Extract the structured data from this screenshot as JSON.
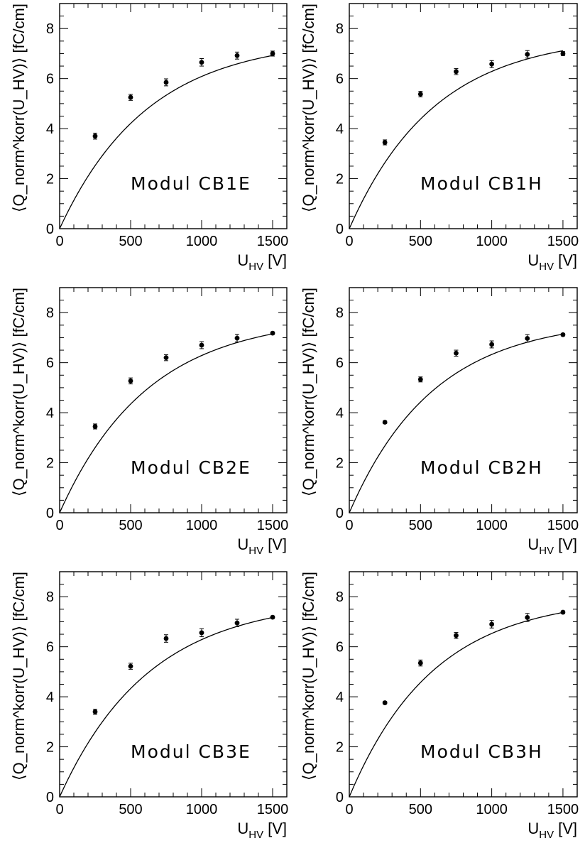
{
  "chart_data": [
    {
      "type": "scatter",
      "label": "Modul CB1E",
      "xlabel_main": "U",
      "xlabel_sub": "HV",
      "xlabel_unit": "[V]",
      "ylabel": "⟨Q_norm^korr(U_HV)⟩ [fC/cm]",
      "xlim": [
        0,
        1600
      ],
      "ylim": [
        0,
        9
      ],
      "x_ticks": [
        "0",
        "500",
        "1000",
        "1500"
      ],
      "y_ticks": [
        "0",
        "2",
        "4",
        "6",
        "8"
      ],
      "x": [
        250,
        500,
        750,
        1000,
        1250,
        1500
      ],
      "y": [
        3.7,
        5.25,
        5.85,
        6.65,
        6.92,
        7.0
      ],
      "yerr": [
        0.12,
        0.12,
        0.14,
        0.15,
        0.14,
        0.1
      ],
      "fit": {
        "A": 7.6,
        "U0": 620
      }
    },
    {
      "type": "scatter",
      "label": "Modul CB1H",
      "xlabel_main": "U",
      "xlabel_sub": "HV",
      "xlabel_unit": "[V]",
      "ylabel": "⟨Q_norm^korr(U_HV)⟩ [fC/cm]",
      "xlim": [
        0,
        1600
      ],
      "ylim": [
        0,
        9
      ],
      "x_ticks": [
        "0",
        "500",
        "1000",
        "1500"
      ],
      "y_ticks": [
        "0",
        "2",
        "4",
        "6",
        "8"
      ],
      "x": [
        250,
        500,
        750,
        1000,
        1250,
        1500
      ],
      "y": [
        3.45,
        5.38,
        6.28,
        6.58,
        6.97,
        7.0
      ],
      "yerr": [
        0.1,
        0.11,
        0.12,
        0.14,
        0.15,
        0.08
      ],
      "fit": {
        "A": 7.75,
        "U0": 600
      }
    },
    {
      "type": "scatter",
      "label": "Modul CB2E",
      "xlabel_main": "U",
      "xlabel_sub": "HV",
      "xlabel_unit": "[V]",
      "ylabel": "⟨Q_norm^korr(U_HV)⟩ [fC/cm]",
      "xlim": [
        0,
        1600
      ],
      "ylim": [
        0,
        9
      ],
      "x_ticks": [
        "0",
        "500",
        "1000",
        "1500"
      ],
      "y_ticks": [
        "0",
        "2",
        "4",
        "6",
        "8"
      ],
      "x": [
        250,
        500,
        750,
        1000,
        1250,
        1500
      ],
      "y": [
        3.45,
        5.27,
        6.2,
        6.7,
        6.98,
        7.18
      ],
      "yerr": [
        0.1,
        0.12,
        0.12,
        0.14,
        0.15,
        0.05
      ],
      "fit": {
        "A": 7.85,
        "U0": 620
      }
    },
    {
      "type": "scatter",
      "label": "Modul CB2H",
      "xlabel_main": "U",
      "xlabel_sub": "HV",
      "xlabel_unit": "[V]",
      "ylabel": "⟨Q_norm^korr(U_HV)⟩ [fC/cm]",
      "xlim": [
        0,
        1600
      ],
      "ylim": [
        0,
        9
      ],
      "x_ticks": [
        "0",
        "500",
        "1000",
        "1500"
      ],
      "y_ticks": [
        "0",
        "2",
        "4",
        "6",
        "8"
      ],
      "x": [
        250,
        500,
        750,
        1000,
        1250,
        1500
      ],
      "y": [
        3.62,
        5.33,
        6.38,
        6.73,
        6.97,
        7.12
      ],
      "yerr": [
        0.05,
        0.1,
        0.12,
        0.14,
        0.15,
        0.05
      ],
      "fit": {
        "A": 7.75,
        "U0": 590
      }
    },
    {
      "type": "scatter",
      "label": "Modul CB3E",
      "xlabel_main": "U",
      "xlabel_sub": "HV",
      "xlabel_unit": "[V]",
      "ylabel": "⟨Q_norm^korr(U_HV)⟩ [fC/cm]",
      "xlim": [
        0,
        1600
      ],
      "ylim": [
        0,
        9
      ],
      "x_ticks": [
        "0",
        "500",
        "1000",
        "1500"
      ],
      "y_ticks": [
        "0",
        "2",
        "4",
        "6",
        "8"
      ],
      "x": [
        250,
        500,
        750,
        1000,
        1250,
        1500
      ],
      "y": [
        3.4,
        5.22,
        6.33,
        6.56,
        6.95,
        7.18
      ],
      "yerr": [
        0.1,
        0.12,
        0.15,
        0.16,
        0.15,
        0.05
      ],
      "fit": {
        "A": 7.9,
        "U0": 630
      }
    },
    {
      "type": "scatter",
      "label": "Modul CB3H",
      "xlabel_main": "U",
      "xlabel_sub": "HV",
      "xlabel_unit": "[V]",
      "ylabel": "⟨Q_norm^korr(U_HV)⟩ [fC/cm]",
      "xlim": [
        0,
        1600
      ],
      "ylim": [
        0,
        9
      ],
      "x_ticks": [
        "0",
        "500",
        "1000",
        "1500"
      ],
      "y_ticks": [
        "0",
        "2",
        "4",
        "6",
        "8"
      ],
      "x": [
        250,
        500,
        750,
        1000,
        1250,
        1500
      ],
      "y": [
        3.76,
        5.35,
        6.45,
        6.9,
        7.17,
        7.38
      ],
      "yerr": [
        0.05,
        0.12,
        0.12,
        0.15,
        0.16,
        0.05
      ],
      "fit": {
        "A": 8.0,
        "U0": 590
      }
    }
  ]
}
